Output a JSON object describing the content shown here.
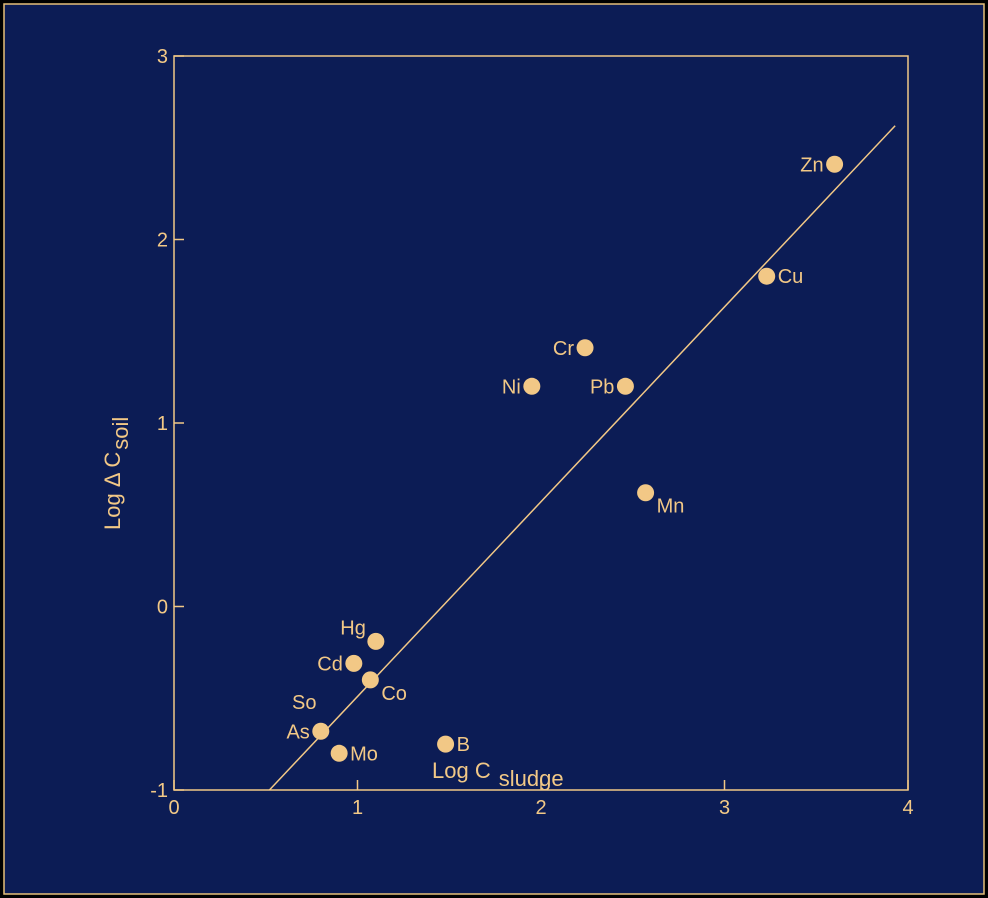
{
  "chart_data": {
    "type": "scatter",
    "title": "",
    "xlabel": "Log C",
    "xlabel_sub": "sludge",
    "ylabel": "Log  Δ C",
    "ylabel_sub": "soil",
    "xlim": [
      0,
      4
    ],
    "ylim": [
      -1,
      3
    ],
    "x_ticks": [
      0,
      1,
      2,
      3,
      4
    ],
    "y_ticks": [
      -1,
      0,
      1,
      2,
      3
    ],
    "x_tick_labels": [
      "0",
      "1",
      "2",
      "3",
      "4"
    ],
    "y_tick_labels": [
      "-1",
      "0",
      "1",
      "2",
      "3"
    ],
    "grid": false,
    "points": [
      {
        "label": "Zn",
        "x": 3.6,
        "y": 2.41,
        "label_side": "left"
      },
      {
        "label": "Cu",
        "x": 3.23,
        "y": 1.8,
        "label_side": "right"
      },
      {
        "label": "Cr",
        "x": 2.24,
        "y": 1.41,
        "label_side": "left"
      },
      {
        "label": "Ni",
        "x": 1.95,
        "y": 1.2,
        "label_side": "left"
      },
      {
        "label": "Pb",
        "x": 2.46,
        "y": 1.2,
        "label_side": "left"
      },
      {
        "label": "Mn",
        "x": 2.57,
        "y": 0.62,
        "label_side": "below-right"
      },
      {
        "label": "Hg",
        "x": 1.1,
        "y": -0.19,
        "label_side": "above-left"
      },
      {
        "label": "Cd",
        "x": 0.98,
        "y": -0.31,
        "label_side": "left"
      },
      {
        "label": "Co",
        "x": 1.07,
        "y": -0.4,
        "label_side": "below-right"
      },
      {
        "label": "As",
        "x": 0.8,
        "y": -0.68,
        "label_side": "left"
      },
      {
        "label": "Mo",
        "x": 0.9,
        "y": -0.8,
        "label_side": "right"
      },
      {
        "label": "B",
        "x": 1.48,
        "y": -0.75,
        "label_side": "right"
      }
    ],
    "annotations": [
      {
        "text": "So",
        "x": 0.71,
        "y": -0.52
      }
    ],
    "regression_line": {
      "x1": 0.52,
      "y1": -1.0,
      "x2": 3.93,
      "y2": 2.62
    },
    "colors": {
      "background": "#0c1c55",
      "border": "#e6c07a",
      "foreground": "#f2c886"
    }
  }
}
